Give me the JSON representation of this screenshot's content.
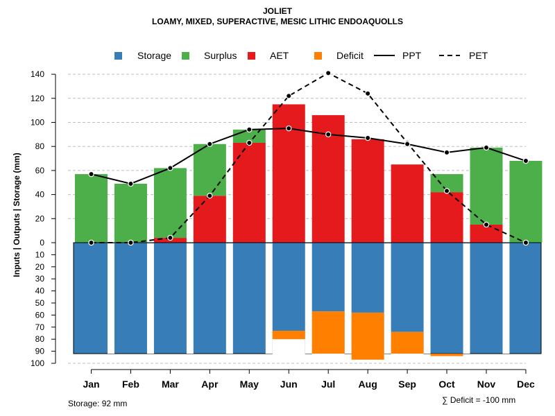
{
  "chart_data": {
    "type": "bar",
    "title": "JOLIET",
    "subtitle": "LOAMY, MIXED, SUPERACTIVE, MESIC LITHIC ENDOAQUOLLS",
    "ylabel": "Inputs | Outputs | Storage     (mm)",
    "upper_ticks": [
      "0",
      "20",
      "40",
      "60",
      "80",
      "100",
      "120",
      "140"
    ],
    "lower_ticks": [
      "10",
      "20",
      "30",
      "40",
      "50",
      "60",
      "70",
      "80",
      "90",
      "100"
    ],
    "upper_ylim": [
      0,
      148
    ],
    "lower_ylim": [
      0,
      100
    ],
    "categories": [
      "Jan",
      "Feb",
      "Mar",
      "Apr",
      "May",
      "Jun",
      "Jul",
      "Aug",
      "Sep",
      "Oct",
      "Nov",
      "Dec"
    ],
    "legend": [
      {
        "name": "Storage",
        "kind": "box",
        "color": "#377EB8"
      },
      {
        "name": "Surplus",
        "kind": "box",
        "color": "#4DAF4A"
      },
      {
        "name": "AET",
        "kind": "box",
        "color": "#E41A1C"
      },
      {
        "name": "Deficit",
        "kind": "box",
        "color": "#FF7F00"
      },
      {
        "name": "PPT",
        "kind": "solid"
      },
      {
        "name": "PET",
        "kind": "dashed"
      }
    ],
    "series": [
      {
        "name": "AET",
        "values": [
          0,
          0,
          4,
          39,
          83,
          115,
          106,
          86,
          65,
          42,
          15,
          0
        ]
      },
      {
        "name": "Surplus",
        "values": [
          57,
          49,
          58,
          43,
          11,
          0,
          0,
          0,
          0,
          15,
          64,
          68
        ]
      },
      {
        "name": "Storage",
        "values": [
          92,
          92,
          92,
          92,
          92,
          73,
          57,
          58,
          74,
          92,
          92,
          92
        ]
      },
      {
        "name": "Deficit",
        "values": [
          0,
          0,
          0,
          0,
          0,
          7,
          35,
          39,
          18,
          2,
          0,
          0
        ]
      },
      {
        "name": "PPT",
        "values": [
          57,
          49,
          62,
          82,
          94,
          95,
          90,
          87,
          82,
          75,
          79,
          68
        ]
      },
      {
        "name": "PET",
        "values": [
          0,
          0,
          4,
          39,
          83,
          122,
          141,
          124,
          83,
          43,
          15,
          0
        ]
      }
    ],
    "storage_capacity": 92
  },
  "footer": {
    "storage_note": "Storage: 92 mm",
    "deficit_note": "∑ Deficit = -100 mm"
  },
  "colors": {
    "storage": "#377EB8",
    "surplus": "#4DAF4A",
    "aet": "#E41A1C",
    "deficit": "#FF7F00",
    "grid": "#BEBEBE"
  }
}
